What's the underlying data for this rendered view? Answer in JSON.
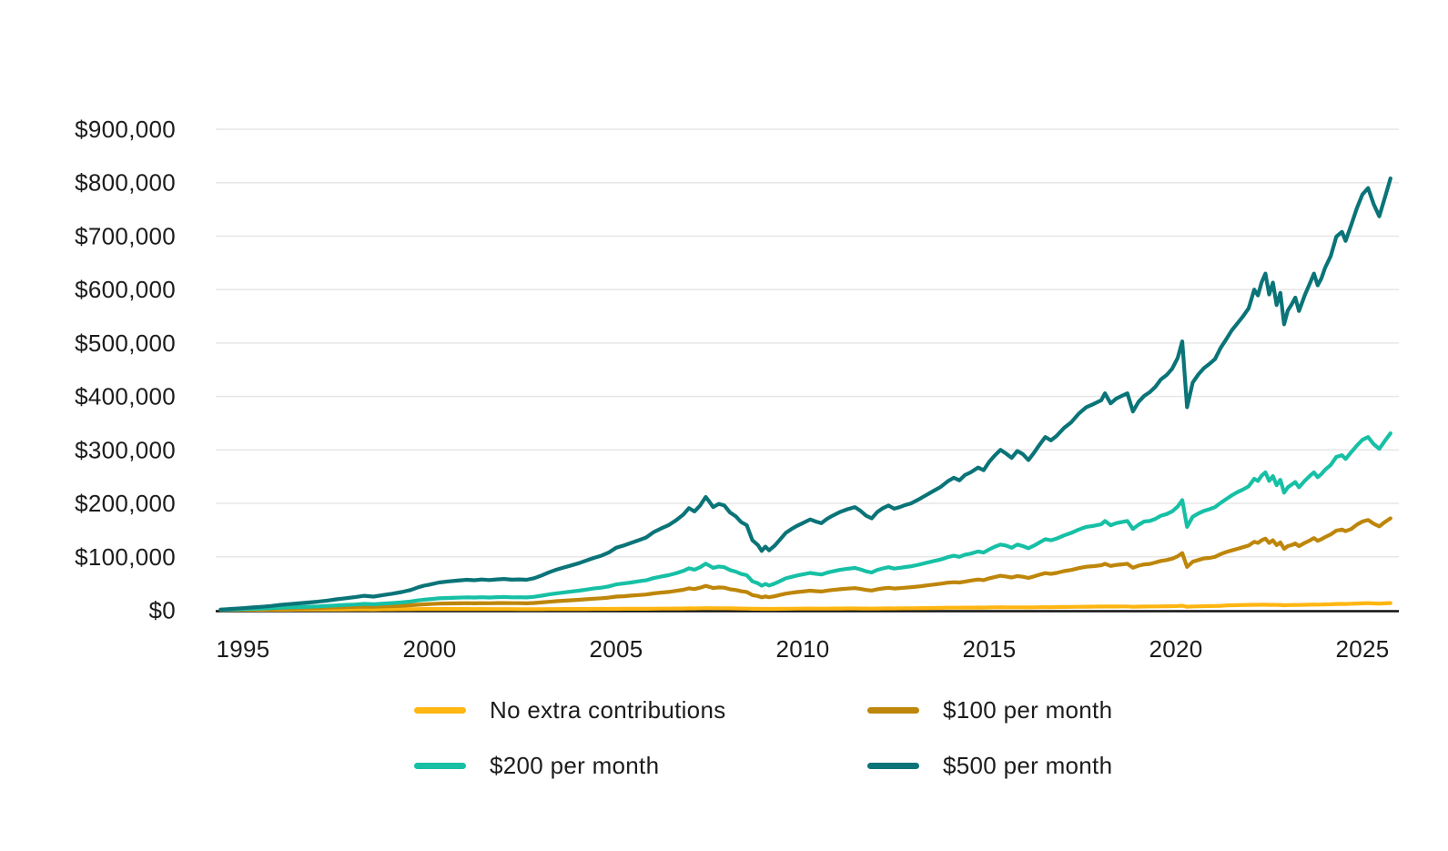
{
  "chart_data": {
    "type": "line",
    "title": "",
    "xlabel": "",
    "ylabel": "",
    "grid": "horizontal",
    "legend_position": "bottom",
    "x_unit": "year",
    "y_unit": "USD",
    "values_unit": "thousands_of_USD",
    "x_range": [
      1994.4,
      2025.95
    ],
    "y_range_thousands": [
      0,
      940
    ],
    "x_tick_values": [
      1995,
      2000,
      2005,
      2010,
      2015,
      2020,
      2025
    ],
    "x_tick_labels": [
      "1995",
      "2000",
      "2005",
      "2010",
      "2015",
      "2020",
      "2025"
    ],
    "y_tick_values_thousands": [
      0,
      100,
      200,
      300,
      400,
      500,
      600,
      700,
      800,
      900
    ],
    "y_tick_labels": [
      "$0",
      "$100,000",
      "$200,000",
      "$300,000",
      "$400,000",
      "$500,000",
      "$600,000",
      "$700,000",
      "$800,000",
      "$900,000"
    ],
    "x": [
      1994.4,
      1994.7,
      1995,
      1995.25,
      1995.5,
      1995.75,
      1996,
      1996.25,
      1996.5,
      1996.75,
      1997,
      1997.25,
      1997.5,
      1997.75,
      1998,
      1998.25,
      1998.5,
      1998.75,
      1999,
      1999.25,
      1999.5,
      1999.7,
      1999.85,
      2000,
      2000.25,
      2000.5,
      2000.75,
      2001,
      2001.2,
      2001.4,
      2001.6,
      2001.8,
      2002,
      2002.2,
      2002.4,
      2002.6,
      2002.8,
      2003,
      2003.2,
      2003.4,
      2003.6,
      2003.8,
      2004,
      2004.2,
      2004.4,
      2004.6,
      2004.8,
      2005,
      2005.2,
      2005.4,
      2005.6,
      2005.8,
      2006,
      2006.2,
      2006.4,
      2006.6,
      2006.8,
      2006.95,
      2007.1,
      2007.25,
      2007.4,
      2007.5,
      2007.6,
      2007.75,
      2007.9,
      2008.05,
      2008.2,
      2008.35,
      2008.5,
      2008.65,
      2008.8,
      2008.9,
      2009,
      2009.1,
      2009.25,
      2009.4,
      2009.55,
      2009.7,
      2009.85,
      2010,
      2010.2,
      2010.35,
      2010.5,
      2010.65,
      2010.8,
      2011,
      2011.2,
      2011.4,
      2011.55,
      2011.7,
      2011.85,
      2012,
      2012.15,
      2012.3,
      2012.45,
      2012.6,
      2012.75,
      2012.9,
      2013.1,
      2013.3,
      2013.5,
      2013.7,
      2013.9,
      2014.05,
      2014.2,
      2014.35,
      2014.5,
      2014.7,
      2014.85,
      2015,
      2015.15,
      2015.3,
      2015.45,
      2015.6,
      2015.75,
      2015.9,
      2016.05,
      2016.2,
      2016.35,
      2016.5,
      2016.65,
      2016.8,
      2017,
      2017.2,
      2017.4,
      2017.6,
      2017.8,
      2018,
      2018.1,
      2018.25,
      2018.4,
      2018.55,
      2018.7,
      2018.85,
      2019,
      2019.15,
      2019.3,
      2019.45,
      2019.6,
      2019.75,
      2019.9,
      2020.05,
      2020.17,
      2020.3,
      2020.45,
      2020.6,
      2020.75,
      2020.9,
      2021.05,
      2021.2,
      2021.35,
      2021.5,
      2021.65,
      2021.8,
      2021.95,
      2022.1,
      2022.2,
      2022.3,
      2022.4,
      2022.5,
      2022.6,
      2022.7,
      2022.8,
      2022.9,
      2023,
      2023.1,
      2023.2,
      2023.3,
      2023.45,
      2023.6,
      2023.7,
      2023.8,
      2023.9,
      2024,
      2024.15,
      2024.3,
      2024.45,
      2024.55,
      2024.7,
      2024.85,
      2025,
      2025.15,
      2025.3,
      2025.45,
      2025.6,
      2025.75
    ],
    "series": [
      {
        "name": "No extra contributions",
        "color": "#FFB612",
        "values": [
          0.9,
          0.95,
          1,
          1.05,
          1.1,
          1.15,
          1.2,
          1.25,
          1.3,
          1.35,
          1.4,
          1.5,
          1.55,
          1.6,
          1.7,
          1.75,
          1.6,
          1.8,
          1.9,
          2,
          2.1,
          2.2,
          2.3,
          2.4,
          2.45,
          2.4,
          2.35,
          2.3,
          2.25,
          2.3,
          2.2,
          2.25,
          2.25,
          2.2,
          2.1,
          2,
          2.05,
          2.1,
          2.15,
          2.2,
          2.3,
          2.35,
          2.4,
          2.45,
          2.5,
          2.5,
          2.55,
          2.6,
          2.65,
          2.7,
          2.75,
          2.8,
          2.9,
          3,
          3.1,
          3.2,
          3.3,
          3.5,
          3.4,
          3.7,
          4,
          3.9,
          3.7,
          3.8,
          3.7,
          3.5,
          3.4,
          3.2,
          3.1,
          2.8,
          2.7,
          2.5,
          2.6,
          2.5,
          2.6,
          2.7,
          2.8,
          2.9,
          3,
          3.1,
          3.2,
          3.1,
          3,
          3.1,
          3.2,
          3.3,
          3.4,
          3.4,
          3.3,
          3.2,
          3.1,
          3.3,
          3.4,
          3.5,
          3.4,
          3.5,
          3.6,
          3.7,
          3.9,
          4.1,
          4.3,
          4.5,
          4.7,
          4.8,
          4.7,
          4.9,
          5,
          5.1,
          5,
          5.3,
          5.5,
          5.6,
          5.5,
          5.4,
          5.5,
          5.4,
          5.2,
          5.4,
          5.6,
          5.8,
          5.7,
          5.9,
          6.2,
          6.3,
          6.5,
          6.7,
          6.8,
          7,
          7.2,
          6.9,
          7,
          7.1,
          7.2,
          6.5,
          6.8,
          7,
          7.1,
          7.2,
          7.4,
          7.5,
          7.7,
          8,
          8.5,
          6.5,
          7.2,
          7.4,
          7.6,
          7.8,
          8,
          8.4,
          9,
          9.4,
          9.6,
          9.8,
          10,
          10.3,
          10.2,
          10.4,
          10.6,
          10.1,
          10.3,
          9.9,
          10.1,
          9.4,
          9.7,
          9.9,
          10.1,
          9.8,
          10.2,
          10.6,
          10.8,
          10.5,
          10.7,
          11,
          11.3,
          11.8,
          12,
          11.8,
          12.2,
          12.6,
          13,
          13.3,
          12.8,
          12.4,
          13,
          13.5
        ]
      },
      {
        "name": "$100 per month",
        "color": "#BE860A",
        "values": [
          1,
          1.3,
          1.6,
          1.9,
          2.2,
          2.5,
          3,
          3.3,
          3.6,
          4,
          4.3,
          4.8,
          5.3,
          5.8,
          6.3,
          6.8,
          6.4,
          7.1,
          7.7,
          8.4,
          9.3,
          10.4,
          11,
          11.5,
          12.4,
          12.7,
          13,
          13.2,
          13,
          13.3,
          13.1,
          13.4,
          13.5,
          13.2,
          13.2,
          13,
          13.6,
          14.7,
          15.9,
          17,
          17.8,
          18.7,
          19.5,
          20.6,
          21.6,
          22.4,
          23.6,
          25.5,
          26.3,
          27.4,
          28.4,
          29.4,
          31.5,
          33,
          34.3,
          36.2,
          38.4,
          41,
          39.7,
          42.2,
          45.6,
          43.7,
          41.6,
          42.8,
          42.2,
          39.4,
          37.9,
          35.6,
          34.3,
          28.4,
          26.6,
          24.2,
          25.9,
          24.4,
          26.3,
          28.8,
          31.2,
          32.7,
          34,
          35.1,
          36.6,
          35.7,
          35,
          36.7,
          37.9,
          39.4,
          40.5,
          41.3,
          39.8,
          37.9,
          36.9,
          39.4,
          40.9,
          42,
          40.7,
          41.4,
          42.3,
          43,
          44.5,
          46.3,
          48,
          49.8,
          51.8,
          52.5,
          52,
          53.5,
          55.6,
          57.5,
          56.4,
          59.8,
          62.4,
          64.5,
          63.1,
          61.3,
          64.1,
          62.6,
          60.4,
          63.3,
          66.5,
          69.4,
          68.2,
          69.9,
          73.2,
          75.4,
          78.8,
          81.4,
          82.6,
          84.2,
          87,
          82.9,
          84.8,
          85.9,
          87,
          79.6,
          83.4,
          85.8,
          86.7,
          89.4,
          92.3,
          94,
          96.6,
          101,
          107,
          81,
          91,
          94,
          97,
          98,
          100,
          105,
          109,
          112,
          115,
          118,
          121,
          128,
          126,
          131,
          134,
          126,
          131,
          122,
          127,
          115,
          120,
          122,
          125,
          120,
          126,
          131,
          135,
          130,
          133,
          137,
          142,
          149,
          151,
          148,
          152,
          160,
          166,
          169,
          162,
          157,
          165,
          172
        ]
      },
      {
        "name": "$200 per month",
        "color": "#17C0A5",
        "values": [
          1,
          1.6,
          2.2,
          2.7,
          3.3,
          3.9,
          4.7,
          5.4,
          6,
          6.6,
          7.2,
          8.1,
          9.1,
          10,
          10.8,
          11.9,
          11.2,
          12.5,
          13.5,
          14.8,
          16.5,
          18.5,
          19.8,
          20.6,
          22.3,
          23,
          23.6,
          24.2,
          23.8,
          24.4,
          23.9,
          24.5,
          24.8,
          24.2,
          24.4,
          24,
          25.2,
          27.3,
          29.7,
          31.7,
          33.4,
          35,
          36.6,
          38.7,
          40.7,
          42.3,
          44.7,
          48.4,
          50,
          52,
          54.1,
          56.1,
          60.1,
          63,
          65.5,
          69.1,
          73.6,
          78.5,
          76,
          80.6,
          87.2,
          83.5,
          79.4,
          81.9,
          80.6,
          75.3,
          72.4,
          67.9,
          65.5,
          54.1,
          50.4,
          45.9,
          49.2,
          46.3,
          50,
          54.8,
          59.7,
          62.5,
          65,
          67.1,
          69.9,
          68.3,
          67,
          70.3,
          72.7,
          75.6,
          77.6,
          79.2,
          76.4,
          72.7,
          70.7,
          75.6,
          78.4,
          80.5,
          78,
          79.3,
          80.9,
          82.2,
          85.1,
          88.5,
          91.8,
          95.1,
          99.6,
          102,
          100,
          104,
          106,
          110,
          108,
          114,
          119,
          123,
          121,
          117,
          123,
          120,
          116,
          121,
          127,
          133,
          131,
          134,
          140,
          145,
          151,
          156,
          158,
          161,
          167,
          159,
          163,
          165,
          167,
          152,
          160,
          166,
          167,
          171,
          177,
          180,
          185,
          194,
          206,
          156,
          175,
          181,
          186,
          189,
          193,
          201,
          208,
          215,
          221,
          226,
          232,
          246,
          242,
          252,
          258,
          242,
          251,
          234,
          244,
          220,
          230,
          235,
          240,
          230,
          242,
          252,
          258,
          249,
          255,
          263,
          272,
          287,
          290,
          283,
          296,
          308,
          319,
          324,
          311,
          302,
          317,
          331
        ]
      },
      {
        "name": "$500 per month",
        "color": "#0A7478",
        "values": [
          1.2,
          2.5,
          4,
          5.2,
          6.5,
          8,
          10,
          11.5,
          13,
          14.5,
          16,
          18,
          20.5,
          22.5,
          24.5,
          27,
          25.5,
          28.5,
          31,
          34,
          38,
          43,
          46,
          48,
          52,
          54,
          55.5,
          57,
          56.2,
          57.5,
          56.5,
          57.8,
          58.5,
          57.2,
          57.8,
          57,
          60,
          65,
          71,
          76,
          80,
          84,
          88,
          93,
          98,
          102,
          108,
          117,
          121,
          126,
          131,
          136,
          146,
          153,
          159,
          168,
          179,
          191,
          185,
          196,
          212,
          203,
          193,
          199,
          196,
          183,
          176,
          165,
          159,
          131,
          122,
          111,
          119,
          112,
          121,
          133,
          145,
          152,
          158,
          163,
          170,
          166,
          163,
          171,
          177,
          184,
          189,
          193,
          186,
          177,
          172,
          184,
          191,
          196,
          190,
          193,
          197,
          200,
          207,
          215,
          223,
          231,
          242,
          248,
          243,
          253,
          258,
          267,
          262,
          278,
          290,
          300,
          293,
          285,
          298,
          292,
          281,
          295,
          310,
          324,
          318,
          326,
          341,
          352,
          368,
          380,
          386,
          393,
          406,
          387,
          396,
          401,
          406,
          372,
          390,
          401,
          408,
          418,
          432,
          440,
          452,
          472,
          503,
          380,
          426,
          441,
          453,
          461,
          470,
          491,
          507,
          524,
          537,
          550,
          565,
          600,
          589,
          614,
          630,
          591,
          613,
          571,
          594,
          535,
          561,
          572,
          585,
          560,
          589,
          613,
          630,
          608,
          621,
          641,
          663,
          699,
          708,
          691,
          721,
          752,
          778,
          790,
          760,
          737,
          772,
          808
        ]
      }
    ]
  },
  "style": {
    "gridline_color": "#e7e7e7",
    "axis_line_color": "#111111",
    "label_color": "#1c1c1c",
    "background_color": "#ffffff"
  }
}
